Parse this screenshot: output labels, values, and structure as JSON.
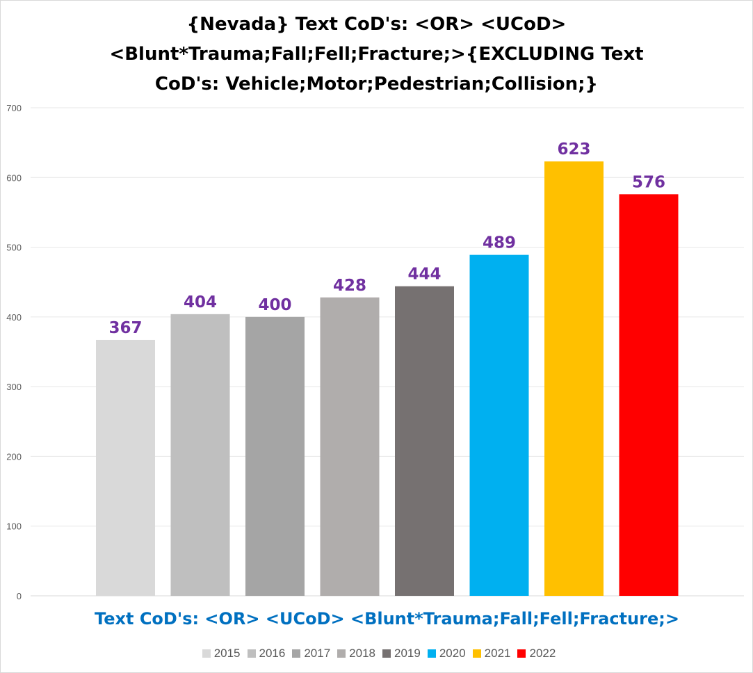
{
  "chart_data": {
    "type": "bar",
    "title_lines": [
      "{Nevada}  Text CoD's: <OR>  <UCoD>",
      "<Blunt*Trauma;Fall;Fell;Fracture;>{EXCLUDING Text",
      "CoD's: Vehicle;Motor;Pedestrian;Collision;}"
    ],
    "xlabel": "Text CoD's: <OR> <UCoD> <Blunt*Trauma;Fall;Fell;Fracture;>",
    "ylabel": "",
    "ylim": [
      0,
      700
    ],
    "yticks": [
      0,
      100,
      200,
      300,
      400,
      500,
      600,
      700
    ],
    "grid": true,
    "legend_position": "bottom",
    "label_color": "#7030a0",
    "series": [
      {
        "name": "2015",
        "value": 367,
        "color": "#d9d9d9"
      },
      {
        "name": "2016",
        "value": 404,
        "color": "#bfbfbf"
      },
      {
        "name": "2017",
        "value": 400,
        "color": "#a5a5a5"
      },
      {
        "name": "2018",
        "value": 428,
        "color": "#b0adac"
      },
      {
        "name": "2019",
        "value": 444,
        "color": "#767171"
      },
      {
        "name": "2020",
        "value": 489,
        "color": "#00b0f0"
      },
      {
        "name": "2021",
        "value": 623,
        "color": "#ffc000"
      },
      {
        "name": "2022",
        "value": 576,
        "color": "#ff0000"
      }
    ]
  }
}
